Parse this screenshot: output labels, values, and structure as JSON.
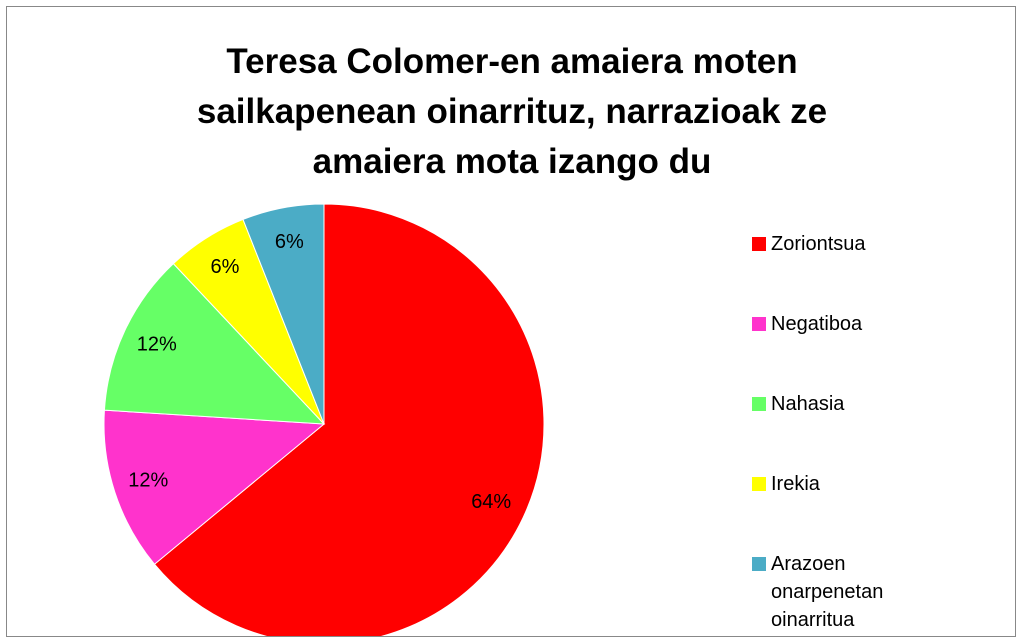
{
  "chart_data": {
    "type": "pie",
    "title": "Teresa Colomer-en amaiera moten sailkapenean oinarrituz, narrazioak ze amaiera mota izango du",
    "categories": [
      "Zoriontsua",
      "Negatiboa",
      "Nahasia",
      "Irekia",
      "Arazoen onarpenetan oinarritua"
    ],
    "values": [
      64,
      12,
      12,
      6,
      6
    ],
    "value_labels": [
      "64%",
      "12%",
      "12%",
      "6%",
      "6%"
    ],
    "colors": [
      "#ff0000",
      "#ff33cc",
      "#66ff66",
      "#ffff00",
      "#4bacc6"
    ],
    "legend": "right"
  }
}
